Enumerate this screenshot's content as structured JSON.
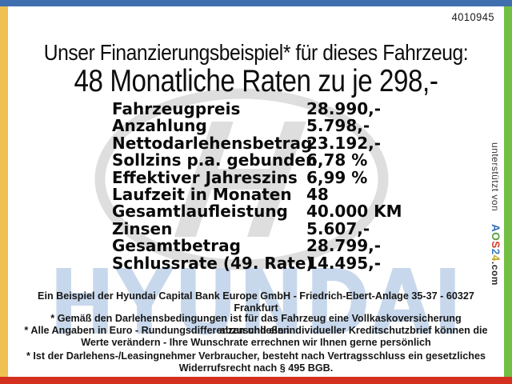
{
  "page": {
    "doc_number": "4010945",
    "title_line1": "Unser Finanzierungsbeispiel* für dieses Fahrzeug:",
    "title_line2": "48 Monatliche Raten zu je 298,-"
  },
  "finance_table": {
    "rows": [
      {
        "label": "Fahrzeugpreis",
        "value": "28.990,-"
      },
      {
        "label": "Anzahlung",
        "value": "5.798,-"
      },
      {
        "label": "Nettodarlehensbetrag",
        "value": "23.192,-"
      },
      {
        "label": "Sollzins p.a. gebunden",
        "value": "6,78 %"
      },
      {
        "label": "Effektiver Jahreszins",
        "value": "6,99 %"
      },
      {
        "label": "Laufzeit in Monaten",
        "value": "48"
      },
      {
        "label": "Gesamtlaufleistung",
        "value": "40.000 KM"
      },
      {
        "label": "Zinsen",
        "value": "5.607,-"
      },
      {
        "label": "Gesamtbetrag",
        "value": "28.799,-"
      },
      {
        "label": "Schlussrate (49. Rate)",
        "value": "14.495,-"
      }
    ]
  },
  "footer": {
    "bank_line": "Ein Beispiel der Hyundai Capital Bank Europe GmbH - Friedrich-Ebert-Anlage 35-37 - 60327 Frankfurt",
    "note1": "* Gemäß den Darlehensbedingungen ist für das Fahrzeug eine Vollkaskoversicherung abzuschließen.",
    "note2": "* Alle Angaben in Euro - Rundungsdifferenzen und ein individueller Kreditschutzbrief können die Werte verändern - Ihre Wunschrate errechnen wir Ihnen gerne persönlich",
    "note3": "* Ist der Darlehens-/Leasingnehmer Verbraucher, besteht nach Vertragsschluss ein gesetzliches Widerrufsrecht nach § 495 BGB."
  },
  "sidebar": {
    "supported_by": "unterstützt von",
    "brand_letters": [
      "A",
      "O",
      "S",
      "2",
      "4"
    ],
    "brand_suffix": ".com"
  },
  "watermarks": {
    "brand_text": "HYUNDAI"
  },
  "colors": {
    "bar_top": "#3f6fae",
    "bar_left": "#efc052",
    "bar_right": "#72bf44",
    "bar_bottom": "#d4301f",
    "watermark_blue": "#c8d8ec",
    "watermark_gray": "#d9d9d9",
    "brand_a": "#2f6cb3",
    "brand_o": "#5aa23d",
    "brand_s": "#d8402a",
    "brand_2": "#3f7cc0",
    "brand_4": "#c3a52d"
  }
}
